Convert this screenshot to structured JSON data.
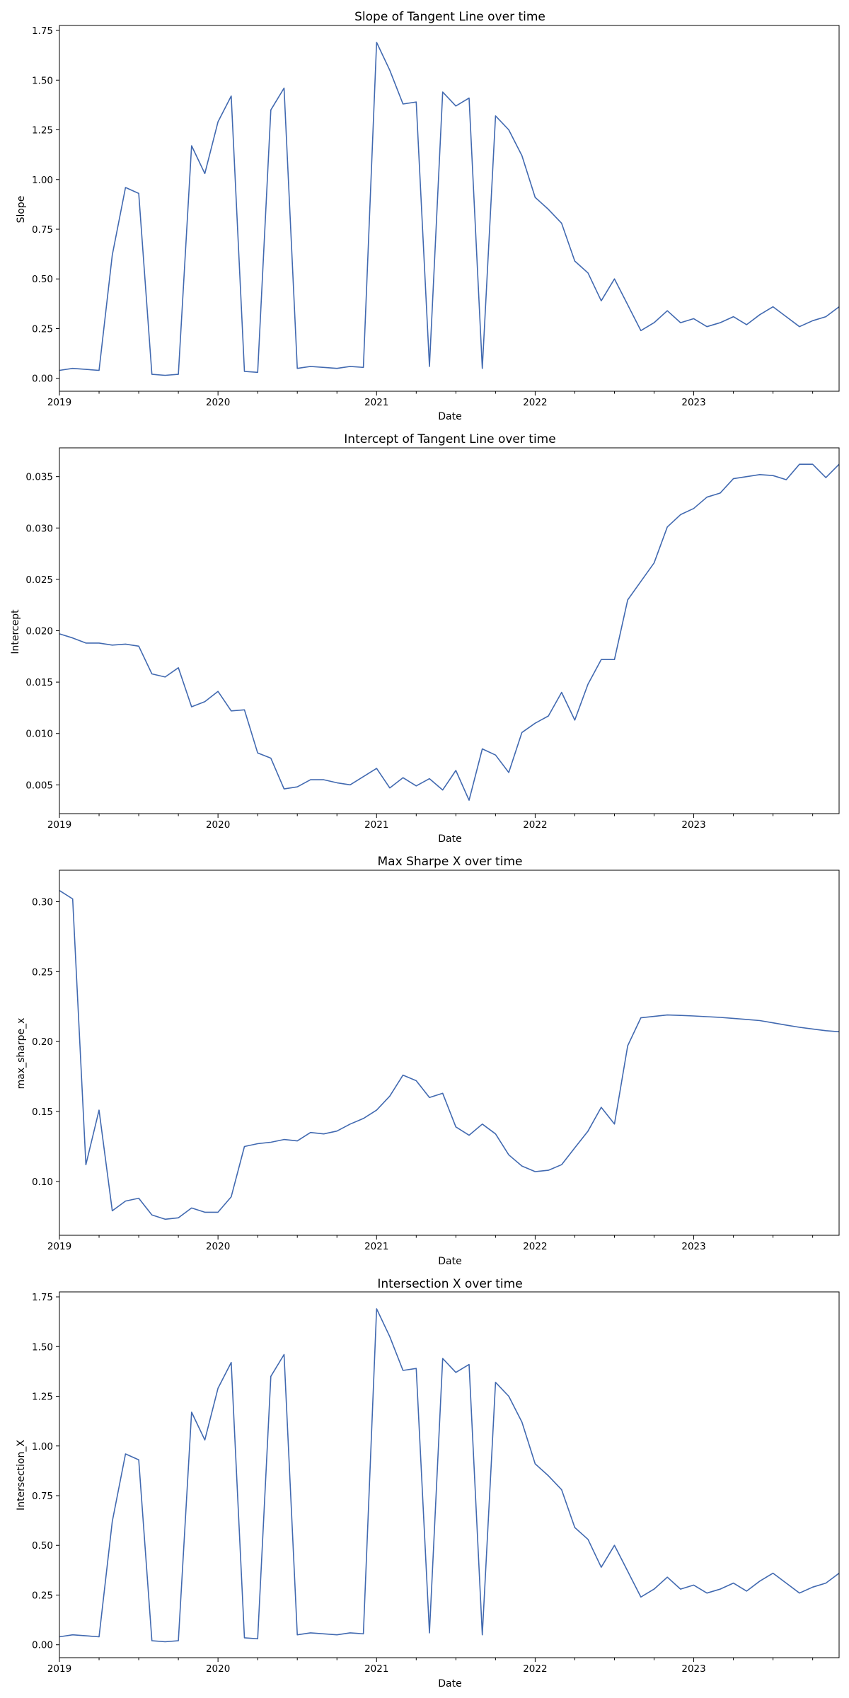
{
  "line_color": "#4169b0",
  "x_dates": [
    "2019-01",
    "2019-02",
    "2019-03",
    "2019-04",
    "2019-05",
    "2019-06",
    "2019-07",
    "2019-08",
    "2019-09",
    "2019-10",
    "2019-11",
    "2019-12",
    "2020-01",
    "2020-02",
    "2020-03",
    "2020-04",
    "2020-05",
    "2020-06",
    "2020-07",
    "2020-08",
    "2020-09",
    "2020-10",
    "2020-11",
    "2020-12",
    "2021-01",
    "2021-02",
    "2021-03",
    "2021-04",
    "2021-05",
    "2021-06",
    "2021-07",
    "2021-08",
    "2021-09",
    "2021-10",
    "2021-11",
    "2021-12",
    "2022-01",
    "2022-02",
    "2022-03",
    "2022-04",
    "2022-05",
    "2022-06",
    "2022-07",
    "2022-08",
    "2022-09",
    "2022-10",
    "2022-11",
    "2022-12",
    "2023-01",
    "2023-02",
    "2023-03",
    "2023-04",
    "2023-05",
    "2023-06",
    "2023-07",
    "2023-08",
    "2023-09",
    "2023-10",
    "2023-11",
    "2023-12"
  ],
  "chart_data": [
    {
      "type": "line",
      "title": "Slope of Tangent Line over time",
      "xlabel": "Date",
      "ylabel": "Slope",
      "xlim": [
        "2019-01",
        "2023-12"
      ],
      "ylim": [
        -0.065,
        1.775
      ],
      "x_ticks": [
        "2019",
        "2020",
        "2021",
        "2022",
        "2023"
      ],
      "y_ticks": [
        "0.00",
        "0.25",
        "0.50",
        "0.75",
        "1.00",
        "1.25",
        "1.50",
        "1.75"
      ],
      "y_tick_values": [
        0,
        0.25,
        0.5,
        0.75,
        1.0,
        1.25,
        1.5,
        1.75
      ],
      "values": [
        0.04,
        0.05,
        0.045,
        0.04,
        0.62,
        0.96,
        0.93,
        0.02,
        0.015,
        0.02,
        1.17,
        1.03,
        1.29,
        1.42,
        0.035,
        0.03,
        1.35,
        1.46,
        0.05,
        0.06,
        0.055,
        0.05,
        0.06,
        0.055,
        1.69,
        1.55,
        1.38,
        1.39,
        0.06,
        1.44,
        1.37,
        1.41,
        0.05,
        1.32,
        1.25,
        1.12,
        0.91,
        0.85,
        0.78,
        0.59,
        0.53,
        0.39,
        0.5,
        0.37,
        0.24,
        0.28,
        0.34,
        0.28,
        0.3,
        0.26,
        0.28,
        0.31,
        0.27,
        0.32,
        0.36,
        0.31,
        0.26,
        0.29,
        0.31,
        0.36
      ]
    },
    {
      "type": "line",
      "title": "Intercept of Tangent Line over time",
      "xlabel": "Date",
      "ylabel": "Intercept",
      "xlim": [
        "2019-01",
        "2023-12"
      ],
      "ylim": [
        0.0022,
        0.0378
      ],
      "x_ticks": [
        "2019",
        "2020",
        "2021",
        "2022",
        "2023"
      ],
      "y_ticks": [
        "0.005",
        "0.010",
        "0.015",
        "0.020",
        "0.025",
        "0.030",
        "0.035"
      ],
      "y_tick_values": [
        0.005,
        0.01,
        0.015,
        0.02,
        0.025,
        0.03,
        0.035
      ],
      "values": [
        0.0197,
        0.0193,
        0.0188,
        0.0188,
        0.0186,
        0.0187,
        0.0185,
        0.0158,
        0.0155,
        0.0164,
        0.0126,
        0.0131,
        0.0141,
        0.0122,
        0.0123,
        0.0081,
        0.0076,
        0.0046,
        0.0048,
        0.0055,
        0.0055,
        0.0052,
        0.005,
        0.0058,
        0.0066,
        0.0047,
        0.0057,
        0.0049,
        0.0056,
        0.0045,
        0.0064,
        0.0035,
        0.0085,
        0.0079,
        0.0062,
        0.0101,
        0.011,
        0.0117,
        0.014,
        0.0113,
        0.0148,
        0.0172,
        0.0172,
        0.023,
        0.0248,
        0.0266,
        0.0301,
        0.0313,
        0.0319,
        0.033,
        0.0334,
        0.0348,
        0.035,
        0.0352,
        0.0351,
        0.0347,
        0.0362,
        0.0362,
        0.0349,
        0.0362
      ]
    },
    {
      "type": "line",
      "title": "Max Sharpe X over time",
      "xlabel": "Date",
      "ylabel": "max_sharpe_x",
      "xlim": [
        "2019-01",
        "2023-12"
      ],
      "ylim": [
        0.0615,
        0.3225
      ],
      "x_ticks": [
        "2019",
        "2020",
        "2021",
        "2022",
        "2023"
      ],
      "y_ticks": [
        "0.10",
        "0.15",
        "0.20",
        "0.25",
        "0.30"
      ],
      "y_tick_values": [
        0.1,
        0.15,
        0.2,
        0.25,
        0.3
      ],
      "values": [
        0.308,
        0.302,
        0.112,
        0.151,
        0.079,
        0.086,
        0.088,
        0.076,
        0.073,
        0.074,
        0.081,
        0.078,
        0.078,
        0.089,
        0.125,
        0.127,
        0.128,
        0.13,
        0.129,
        0.135,
        0.134,
        0.136,
        0.141,
        0.145,
        0.151,
        0.161,
        0.176,
        0.172,
        0.16,
        0.163,
        0.139,
        0.133,
        0.141,
        0.134,
        0.119,
        0.111,
        0.107,
        0.108,
        0.112,
        0.124,
        0.136,
        0.153,
        0.141,
        0.197,
        0.217,
        0.218,
        0.219,
        0.2187,
        0.2183,
        0.2178,
        0.2173,
        0.2166,
        0.2158,
        0.215,
        0.2134,
        0.2118,
        0.2102,
        0.209,
        0.2078,
        0.207
      ]
    },
    {
      "type": "line",
      "title": "Intersection X over time",
      "xlabel": "Date",
      "ylabel": "Intersection_X",
      "xlim": [
        "2019-01",
        "2023-12"
      ],
      "ylim": [
        -0.065,
        1.775
      ],
      "x_ticks": [
        "2019",
        "2020",
        "2021",
        "2022",
        "2023"
      ],
      "y_ticks": [
        "0.00",
        "0.25",
        "0.50",
        "0.75",
        "1.00",
        "1.25",
        "1.50",
        "1.75"
      ],
      "y_tick_values": [
        0,
        0.25,
        0.5,
        0.75,
        1.0,
        1.25,
        1.5,
        1.75
      ],
      "values": [
        0.04,
        0.05,
        0.045,
        0.04,
        0.62,
        0.96,
        0.93,
        0.02,
        0.015,
        0.02,
        1.17,
        1.03,
        1.29,
        1.42,
        0.035,
        0.03,
        1.35,
        1.46,
        0.05,
        0.06,
        0.055,
        0.05,
        0.06,
        0.055,
        1.69,
        1.55,
        1.38,
        1.39,
        0.06,
        1.44,
        1.37,
        1.41,
        0.05,
        1.32,
        1.25,
        1.12,
        0.91,
        0.85,
        0.78,
        0.59,
        0.53,
        0.39,
        0.5,
        0.37,
        0.24,
        0.28,
        0.34,
        0.28,
        0.3,
        0.26,
        0.28,
        0.31,
        0.27,
        0.32,
        0.36,
        0.31,
        0.26,
        0.29,
        0.31,
        0.36
      ]
    }
  ]
}
